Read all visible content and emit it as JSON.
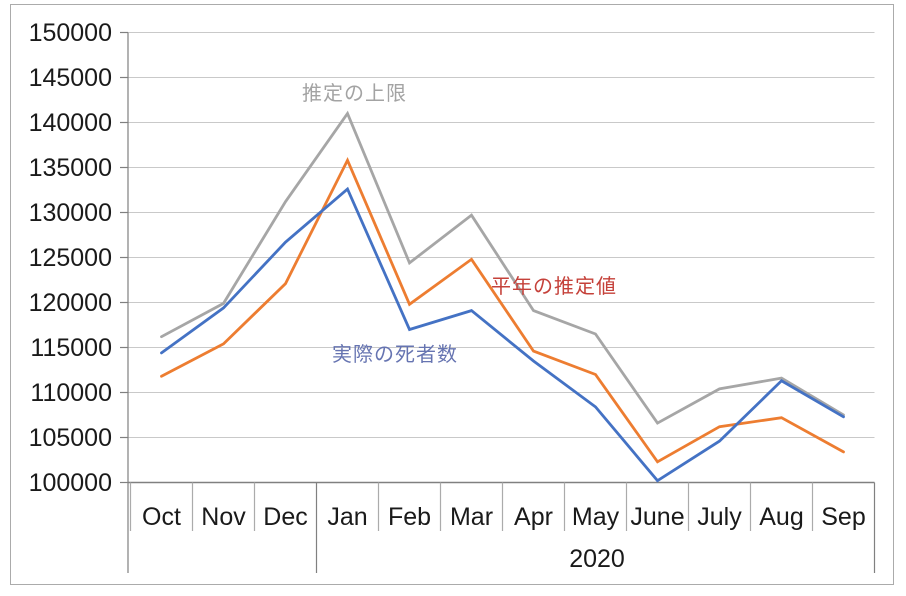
{
  "chart_data": {
    "type": "line",
    "title": "",
    "categories": [
      "Oct",
      "Nov",
      "Dec",
      "Jan",
      "Feb",
      "Mar",
      "Apr",
      "May",
      "June",
      "July",
      "Aug",
      "Sep"
    ],
    "series": [
      {
        "name": "推定の上限",
        "color": "#A6A6A6",
        "values": [
          116200,
          119900,
          131200,
          141000,
          124400,
          129700,
          119100,
          116500,
          106600,
          110400,
          111600,
          107500
        ]
      },
      {
        "name": "平年の推定値",
        "color": "#ED7D31",
        "values": [
          111800,
          115400,
          122100,
          135800,
          119800,
          124800,
          114600,
          112000,
          102300,
          106200,
          107200,
          103400
        ]
      },
      {
        "name": "実際の死者数",
        "color": "#4472C4",
        "values": [
          114400,
          119400,
          126700,
          132600,
          117000,
          119100,
          113500,
          108400,
          100200,
          104600,
          111300,
          107300
        ]
      }
    ],
    "ylim": [
      100000,
      150000
    ],
    "ytick_step": 5000,
    "y_tick_labels": [
      "150000",
      "145000",
      "140000",
      "135000",
      "130000",
      "125000",
      "120000",
      "115000",
      "110000",
      "105000",
      "100000"
    ],
    "x_secondary_label": "2020",
    "x_group_boundary_after": "Dec",
    "grid": true,
    "legend_position": "inline-annotations"
  },
  "annotations": {
    "upper": {
      "text": "推定の上限",
      "color": "#A3A3A3"
    },
    "normal": {
      "text": "平年の推定値",
      "color": "#C5413A"
    },
    "actual": {
      "text": "実際の死者数",
      "color": "#6674B1"
    }
  },
  "axis_style": {
    "axis_line_color": "#808080",
    "grid_color": "#C9C9C9",
    "tick_label_color": "#1A1A1A"
  }
}
